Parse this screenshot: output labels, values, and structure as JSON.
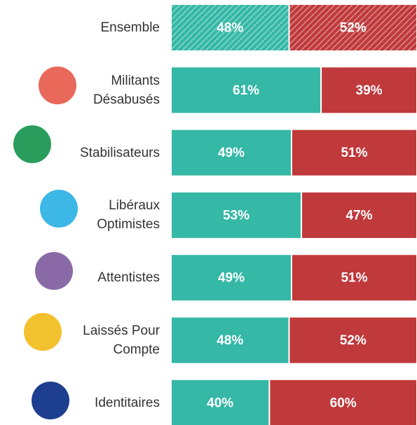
{
  "chart_data": {
    "type": "stacked-bar-horizontal",
    "categories": [
      "Ensemble",
      "Militants Désabusés",
      "Stabilisateurs",
      "Libéraux Optimistes",
      "Attentistes",
      "Laissés Pour Compte",
      "Identitaires"
    ],
    "series": [
      {
        "color": "#35b8a6",
        "values": [
          48,
          61,
          49,
          53,
          49,
          48,
          40
        ],
        "value_labels": [
          "48%",
          "61%",
          "49%",
          "53%",
          "49%",
          "48%",
          "40%"
        ]
      },
      {
        "color": "#c0393b",
        "values": [
          52,
          39,
          51,
          47,
          51,
          52,
          60
        ],
        "value_labels": [
          "52%",
          "39%",
          "51%",
          "47%",
          "51%",
          "52%",
          "60%"
        ]
      }
    ],
    "xlim": [
      0,
      100
    ]
  }
}
